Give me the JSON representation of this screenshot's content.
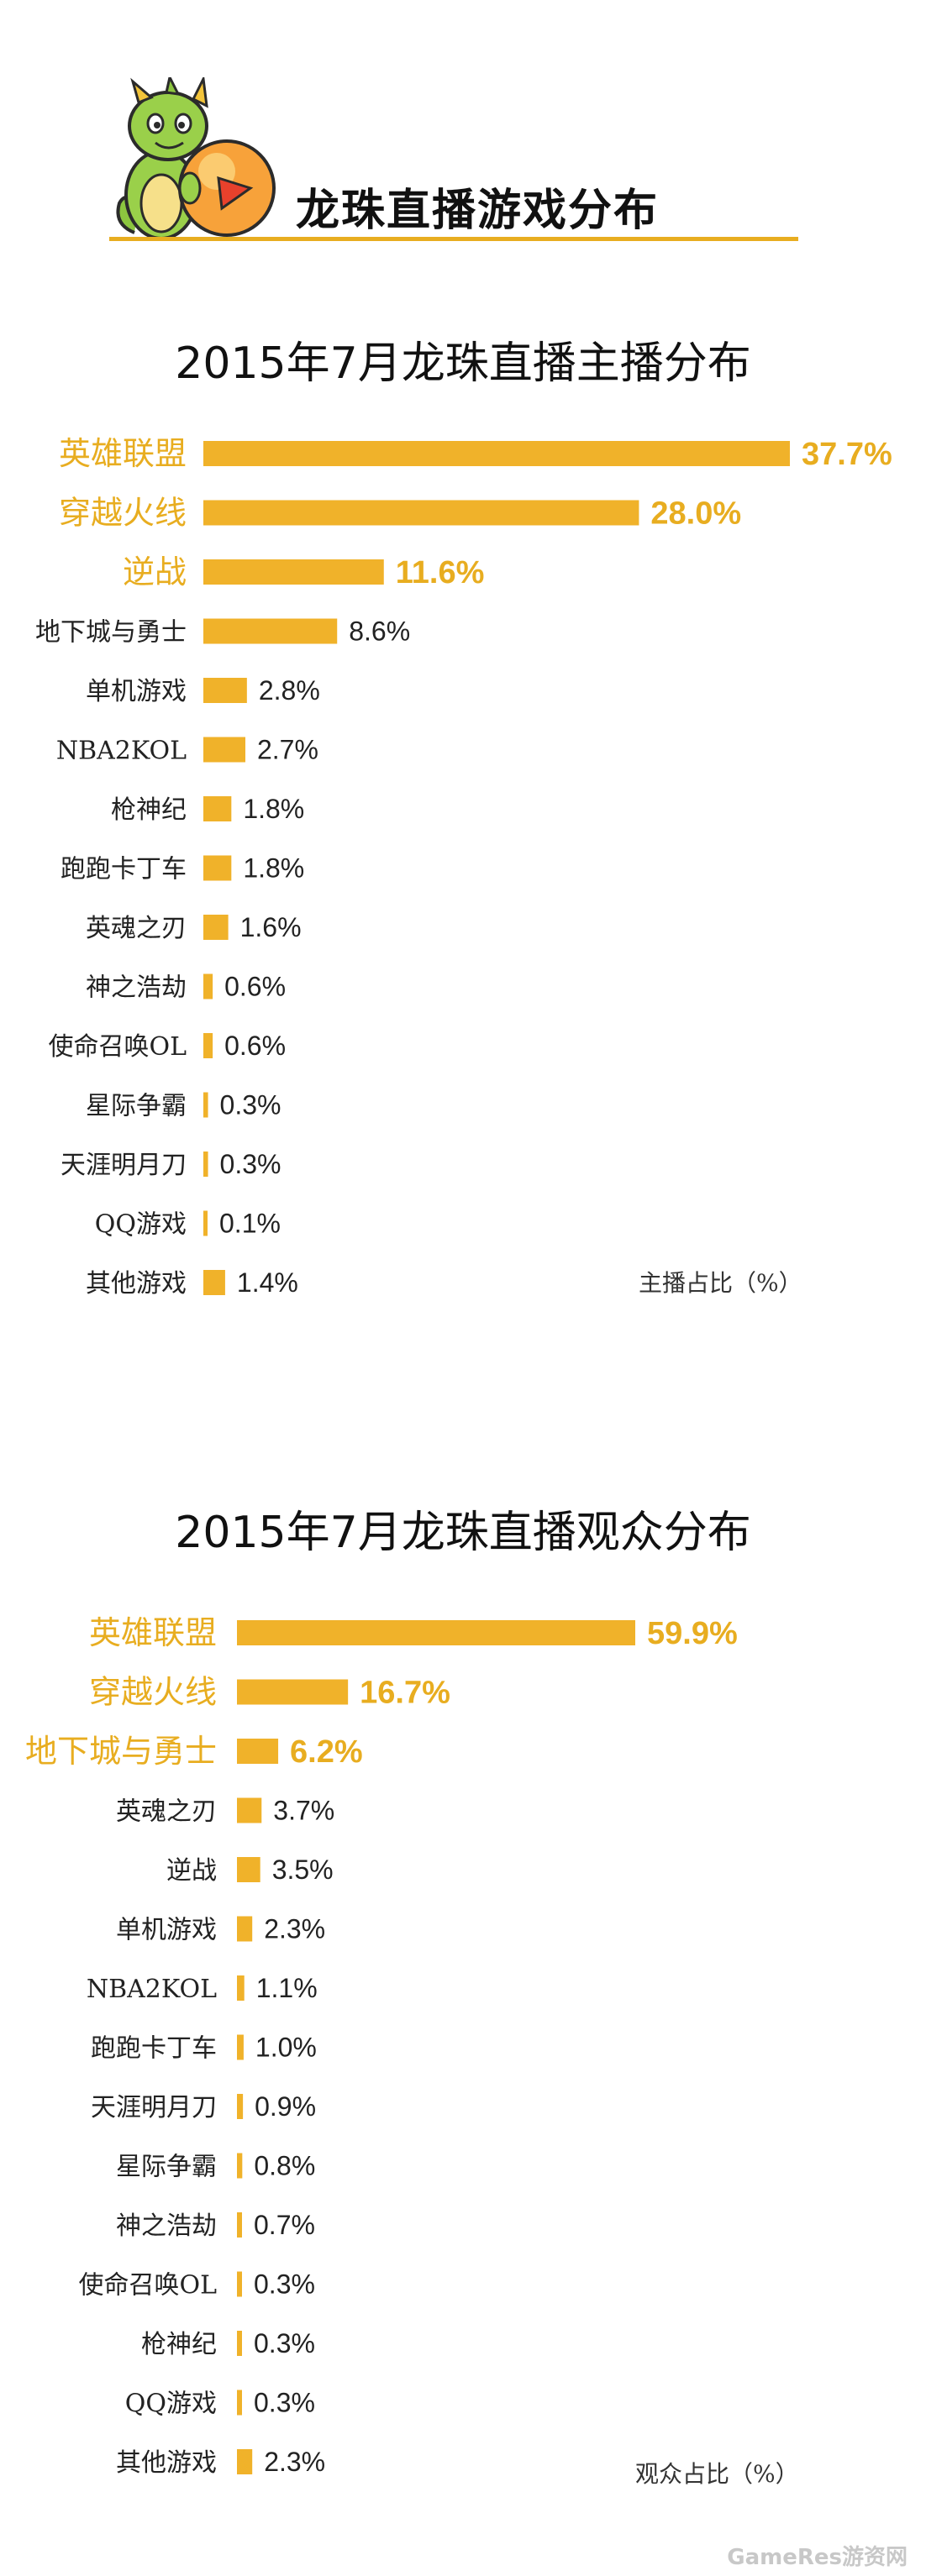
{
  "banner": {
    "title": "龙珠直播游戏分布"
  },
  "charts": [
    {
      "id": "anchors",
      "title": "2015年7月龙珠直播主播分布",
      "unit_label": "主播占比（%）",
      "chart_data": {
        "type": "bar",
        "orientation": "horizontal",
        "title": "2015年7月龙珠直播主播分布",
        "xlabel": "主播占比（%）",
        "ylabel": "",
        "value_suffix": "%",
        "categories": [
          "英雄联盟",
          "穿越火线",
          "逆战",
          "地下城与勇士",
          "单机游戏",
          "NBA2KOL",
          "枪神纪",
          "跑跑卡丁车",
          "英魂之刃",
          "神之浩劫",
          "使命召唤OL",
          "星际争霸",
          "天涯明月刀",
          "QQ游戏",
          "其他游戏"
        ],
        "values": [
          37.7,
          28.0,
          11.6,
          8.6,
          2.8,
          2.7,
          1.8,
          1.8,
          1.6,
          0.6,
          0.6,
          0.3,
          0.3,
          0.1,
          1.4
        ],
        "value_labels": [
          "37.7%",
          "28.0%",
          "11.6%",
          "8.6%",
          "2.8%",
          "2.7%",
          "1.8%",
          "1.8%",
          "1.6%",
          "0.6%",
          "0.6%",
          "0.3%",
          "0.3%",
          "0.1%",
          "1.4%"
        ],
        "highlight_count": 3,
        "bar_color": "#f0b22a",
        "highlight_label_color": "#e8ad20",
        "label_color": "#222222"
      }
    },
    {
      "id": "viewers",
      "title": "2015年7月龙珠直播观众分布",
      "unit_label": "观众占比（%）",
      "chart_data": {
        "type": "bar",
        "orientation": "horizontal",
        "title": "2015年7月龙珠直播观众分布",
        "xlabel": "观众占比（%）",
        "ylabel": "",
        "value_suffix": "%",
        "categories": [
          "英雄联盟",
          "穿越火线",
          "地下城与勇士",
          "英魂之刃",
          "逆战",
          "单机游戏",
          "NBA2KOL",
          "跑跑卡丁车",
          "天涯明月刀",
          "星际争霸",
          "神之浩劫",
          "使命召唤OL",
          "枪神纪",
          "QQ游戏",
          "其他游戏"
        ],
        "values": [
          59.9,
          16.7,
          6.2,
          3.7,
          3.5,
          2.3,
          1.1,
          1.0,
          0.9,
          0.8,
          0.7,
          0.3,
          0.3,
          0.3,
          2.3
        ],
        "value_labels": [
          "59.9%",
          "16.7%",
          "6.2%",
          "3.7%",
          "3.5%",
          "2.3%",
          "1.1%",
          "1.0%",
          "0.9%",
          "0.8%",
          "0.7%",
          "0.3%",
          "0.3%",
          "0.3%",
          "2.3%"
        ],
        "highlight_count": 3,
        "bar_color": "#f0b22a",
        "highlight_label_color": "#e8ad20",
        "label_color": "#222222"
      }
    }
  ],
  "watermark": "GameRes游资网"
}
